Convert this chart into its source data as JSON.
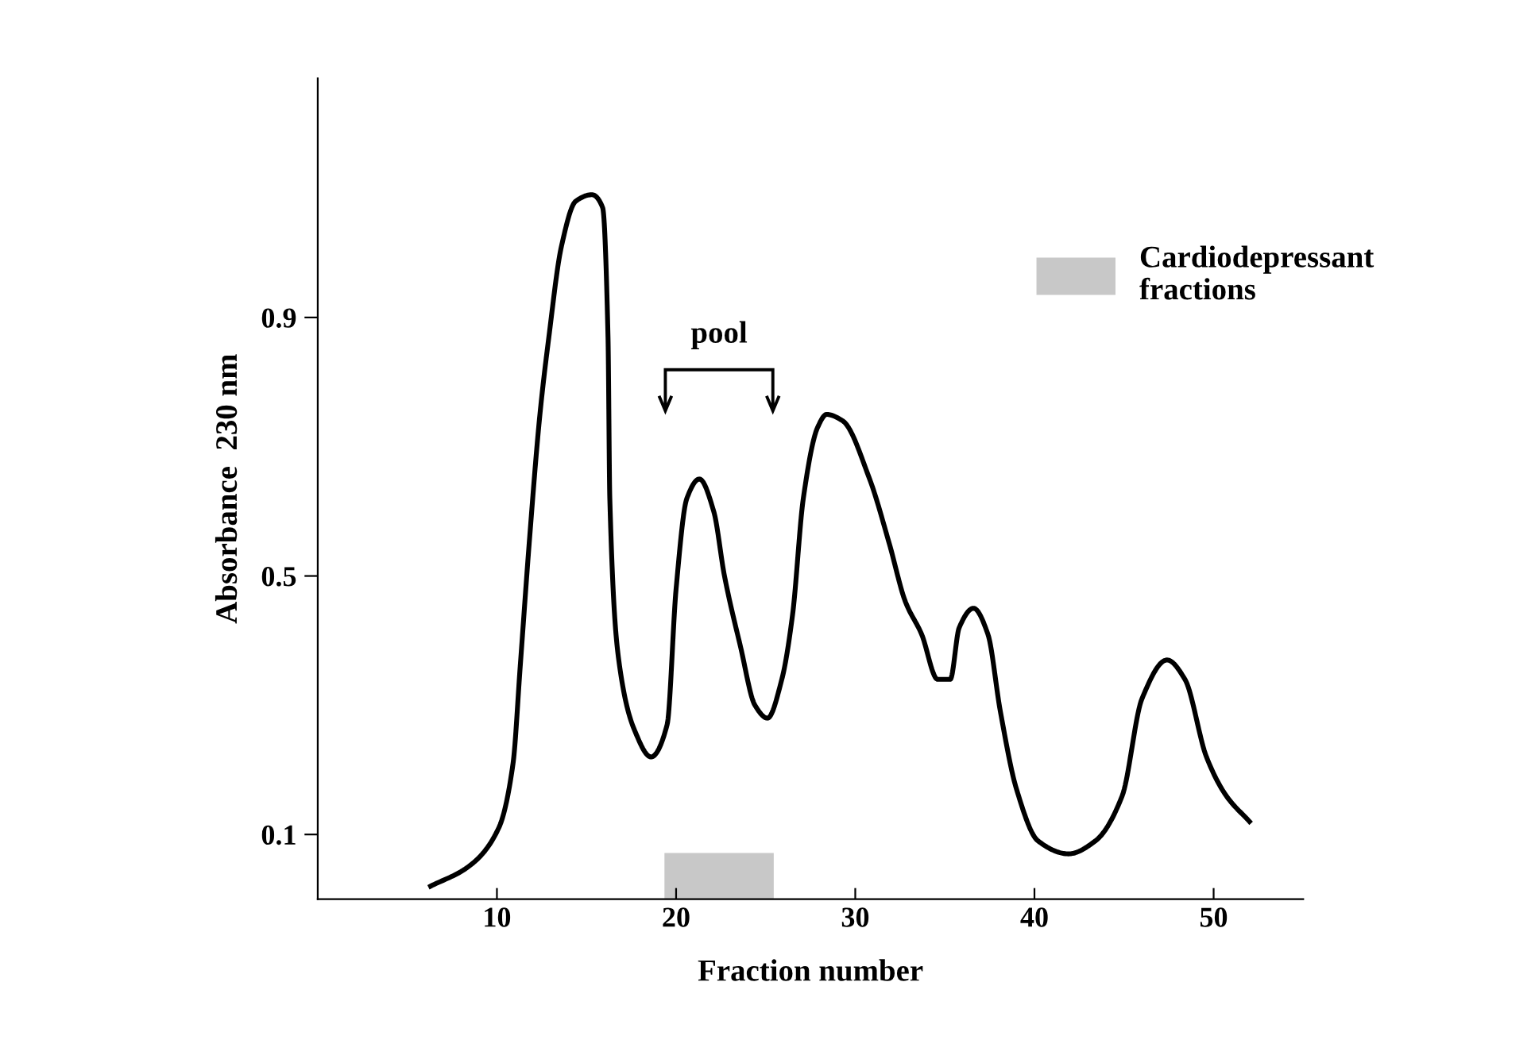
{
  "chart_data": {
    "type": "line",
    "xlabel": "Fraction number",
    "ylabel": "Absorbance  230 nm",
    "xlim": [
      0,
      55
    ],
    "ylim": [
      0,
      1.27
    ],
    "xticks": [
      10,
      20,
      30,
      40,
      50
    ],
    "yticks": [
      0.1,
      0.5,
      0.9
    ],
    "series": [
      {
        "color": "#000000",
        "x": [
          6.3,
          8.4,
          10.1,
          10.9,
          11.3,
          11.8,
          12.4,
          12.9,
          13.6,
          14.4,
          15.3,
          15.9,
          16.2,
          16.3,
          16.8,
          17.7,
          18.6,
          19.5,
          20.0,
          20.6,
          21.3,
          22.1,
          22.7,
          23.6,
          24.4,
          25.1,
          25.9,
          26.5,
          27.1,
          27.9,
          28.4,
          29.3,
          30.8,
          31.9,
          32.8,
          33.7,
          34.6,
          35.3,
          35.8,
          36.6,
          37.4,
          38.1,
          39.0,
          40.2,
          41.9,
          43.4,
          44.9,
          46.0,
          47.4,
          48.4,
          49.6,
          50.7,
          52.0
        ],
        "values": [
          0.02,
          0.05,
          0.11,
          0.21,
          0.36,
          0.55,
          0.75,
          0.87,
          1.01,
          1.08,
          1.09,
          1.07,
          0.87,
          0.62,
          0.37,
          0.26,
          0.22,
          0.27,
          0.48,
          0.62,
          0.65,
          0.6,
          0.5,
          0.39,
          0.3,
          0.28,
          0.34,
          0.44,
          0.62,
          0.73,
          0.75,
          0.74,
          0.65,
          0.55,
          0.46,
          0.41,
          0.34,
          0.34,
          0.42,
          0.45,
          0.41,
          0.29,
          0.17,
          0.09,
          0.07,
          0.09,
          0.16,
          0.31,
          0.37,
          0.34,
          0.22,
          0.16,
          0.12
        ]
      }
    ],
    "bands": [
      {
        "axis": "x",
        "from": 19.4,
        "to": 25.4,
        "label": "Cardiodepressant\nfractions",
        "color": "#c8c8c8"
      }
    ],
    "annotations": [
      "pool"
    ],
    "legend": "top right",
    "grid": false,
    "marker": "none",
    "line_style": "solid"
  }
}
